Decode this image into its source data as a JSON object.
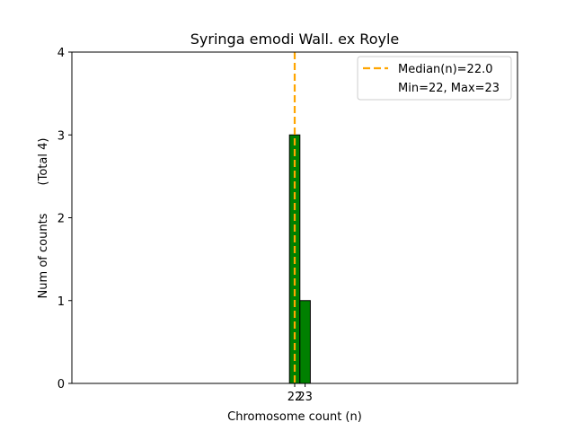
{
  "chart_data": {
    "type": "bar",
    "title": "Syringa emodi Wall. ex Royle",
    "xlabel": "Chromosome count (n)",
    "ylabel": "Num of counts",
    "ylabel_note": "(Total 4)",
    "x": [
      22,
      23
    ],
    "values": [
      3,
      1
    ],
    "bin_width": 1,
    "xlim": [
      0.6,
      43.4
    ],
    "ylim": [
      0,
      4
    ],
    "yticks": [
      0,
      1,
      2,
      3,
      4
    ],
    "xticks": [
      22,
      23
    ],
    "bar_color": "#008000",
    "bar_edge_color": "#000000",
    "median": 22.0,
    "median_color": "#FFA500",
    "legend": {
      "position": "upper right",
      "median_label": "Median(n)=22.0",
      "minmax_label": "Min=22, Max=23"
    },
    "grid": false
  }
}
